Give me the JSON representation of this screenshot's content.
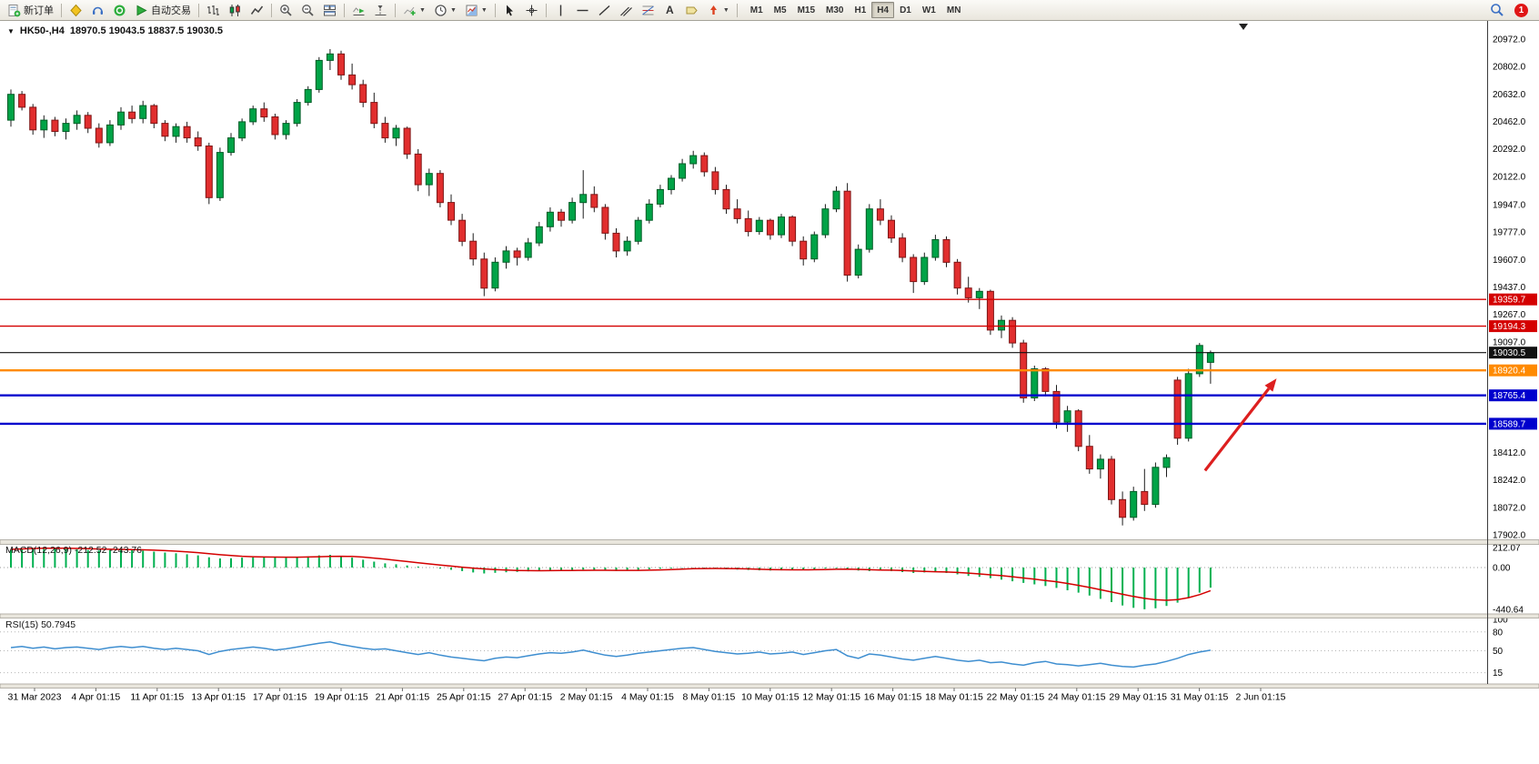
{
  "toolbar": {
    "new_order_label": "新订单",
    "auto_trading_label": "自动交易",
    "timeframes": [
      "M1",
      "M5",
      "M15",
      "M30",
      "H1",
      "H4",
      "D1",
      "W1",
      "MN"
    ],
    "active_timeframe": "H4",
    "notification_count": "1",
    "icons": [
      "new-order",
      "alerts",
      "headset",
      "community",
      "auto-trading",
      "bar-chart",
      "candlestick-chart",
      "line-chart",
      "zoom-in",
      "zoom-out",
      "tile-windows",
      "auto-scroll",
      "chart-shift",
      "indicators",
      "periods",
      "templates",
      "cursor",
      "crosshair",
      "vertical-line",
      "horizontal-line",
      "trendline",
      "equidistant-channel",
      "fibonacci",
      "text",
      "label",
      "arrows",
      "search",
      "notification"
    ]
  },
  "chart_header": {
    "collapse_glyph": "▼",
    "title": "HK50-,H4",
    "ohlc": "18970.5 19043.5 18837.5 19030.5"
  },
  "chart_data": {
    "type": "candlestick",
    "symbol_period": "HK50-,H4",
    "up_color": "#00a347",
    "down_color": "#e12e2e",
    "price_axis_labels": [
      "20972.0",
      "20802.0",
      "20632.0",
      "20462.0",
      "20292.0",
      "20122.0",
      "19947.0",
      "19777.0",
      "19607.0",
      "19437.0",
      "19267.0",
      "19097.0",
      "18412.0",
      "18242.0",
      "18072.0",
      "17902.0"
    ],
    "horizontal_lines": [
      {
        "price": 19359.7,
        "label": "19359.7",
        "color": "#d40000",
        "width": 1.4
      },
      {
        "price": 19194.3,
        "label": "19194.3",
        "color": "#d40000",
        "width": 1.4
      },
      {
        "price": 19030.5,
        "label": "19030.5",
        "color": "#111111",
        "width": 1.1
      },
      {
        "price": 18920.4,
        "label": "18920.4",
        "color": "#ff8a00",
        "width": 2.4
      },
      {
        "price": 18765.4,
        "label": "18765.4",
        "color": "#0000cd",
        "width": 2.4
      },
      {
        "price": 18589.7,
        "label": "18589.7",
        "color": "#0000cd",
        "width": 2.4
      }
    ],
    "annotation_arrow": {
      "from_index": 108.5,
      "from_price": 18300,
      "to_index": 115,
      "to_price": 18870,
      "color": "#dd1f1f"
    },
    "time_axis_labels": [
      "31 Mar 2023",
      "4 Apr 01:15",
      "11 Apr 01:15",
      "13 Apr 01:15",
      "17 Apr 01:15",
      "19 Apr 01:15",
      "21 Apr 01:15",
      "25 Apr 01:15",
      "27 Apr 01:15",
      "2 May 01:15",
      "4 May 01:15",
      "8 May 01:15",
      "10 May 01:15",
      "12 May 01:15",
      "16 May 01:15",
      "18 May 01:15",
      "22 May 01:15",
      "24 May 01:15",
      "29 May 01:15",
      "31 May 01:15",
      "2 Jun 01:15"
    ],
    "candles": [
      [
        20470,
        20660,
        20430,
        20630
      ],
      [
        20630,
        20650,
        20530,
        20550
      ],
      [
        20550,
        20570,
        20380,
        20410
      ],
      [
        20410,
        20500,
        20360,
        20470
      ],
      [
        20470,
        20490,
        20370,
        20400
      ],
      [
        20400,
        20480,
        20350,
        20450
      ],
      [
        20450,
        20530,
        20410,
        20500
      ],
      [
        20500,
        20520,
        20390,
        20420
      ],
      [
        20420,
        20450,
        20300,
        20330
      ],
      [
        20330,
        20470,
        20310,
        20440
      ],
      [
        20440,
        20550,
        20410,
        20520
      ],
      [
        20520,
        20560,
        20450,
        20480
      ],
      [
        20480,
        20590,
        20450,
        20560
      ],
      [
        20560,
        20570,
        20420,
        20450
      ],
      [
        20450,
        20470,
        20340,
        20370
      ],
      [
        20370,
        20450,
        20330,
        20430
      ],
      [
        20430,
        20460,
        20330,
        20360
      ],
      [
        20360,
        20400,
        20280,
        20310
      ],
      [
        20310,
        20330,
        19950,
        19990
      ],
      [
        19990,
        20300,
        19970,
        20270
      ],
      [
        20270,
        20390,
        20250,
        20360
      ],
      [
        20360,
        20480,
        20340,
        20460
      ],
      [
        20460,
        20560,
        20440,
        20540
      ],
      [
        20540,
        20580,
        20460,
        20490
      ],
      [
        20490,
        20510,
        20350,
        20380
      ],
      [
        20380,
        20470,
        20350,
        20450
      ],
      [
        20450,
        20600,
        20430,
        20580
      ],
      [
        20580,
        20680,
        20560,
        20660
      ],
      [
        20660,
        20860,
        20640,
        20840
      ],
      [
        20840,
        20910,
        20780,
        20880
      ],
      [
        20880,
        20900,
        20720,
        20750
      ],
      [
        20750,
        20820,
        20660,
        20690
      ],
      [
        20690,
        20720,
        20550,
        20580
      ],
      [
        20580,
        20640,
        20420,
        20450
      ],
      [
        20450,
        20490,
        20330,
        20360
      ],
      [
        20360,
        20440,
        20310,
        20420
      ],
      [
        20420,
        20430,
        20230,
        20260
      ],
      [
        20260,
        20290,
        20030,
        20070
      ],
      [
        20070,
        20170,
        20000,
        20140
      ],
      [
        20140,
        20160,
        19930,
        19960
      ],
      [
        19960,
        20010,
        19820,
        19850
      ],
      [
        19850,
        19890,
        19690,
        19720
      ],
      [
        19720,
        19770,
        19570,
        19610
      ],
      [
        19610,
        19650,
        19380,
        19430
      ],
      [
        19430,
        19620,
        19410,
        19590
      ],
      [
        19590,
        19690,
        19550,
        19660
      ],
      [
        19660,
        19680,
        19570,
        19620
      ],
      [
        19620,
        19740,
        19600,
        19710
      ],
      [
        19710,
        19840,
        19690,
        19810
      ],
      [
        19810,
        19930,
        19780,
        19900
      ],
      [
        19900,
        19920,
        19810,
        19850
      ],
      [
        19850,
        19990,
        19830,
        19960
      ],
      [
        19960,
        20160,
        19860,
        20010
      ],
      [
        20010,
        20060,
        19900,
        19930
      ],
      [
        19930,
        19950,
        19730,
        19770
      ],
      [
        19770,
        19800,
        19620,
        19660
      ],
      [
        19660,
        19750,
        19630,
        19720
      ],
      [
        19720,
        19870,
        19700,
        19850
      ],
      [
        19850,
        19980,
        19830,
        19950
      ],
      [
        19950,
        20070,
        19930,
        20040
      ],
      [
        20040,
        20130,
        20010,
        20110
      ],
      [
        20110,
        20230,
        20090,
        20200
      ],
      [
        20200,
        20280,
        20170,
        20250
      ],
      [
        20250,
        20270,
        20120,
        20150
      ],
      [
        20150,
        20180,
        20010,
        20040
      ],
      [
        20040,
        20070,
        19890,
        19920
      ],
      [
        19920,
        19980,
        19830,
        19860
      ],
      [
        19860,
        19910,
        19750,
        19780
      ],
      [
        19780,
        19870,
        19760,
        19850
      ],
      [
        19850,
        19860,
        19730,
        19760
      ],
      [
        19760,
        19890,
        19740,
        19870
      ],
      [
        19870,
        19880,
        19690,
        19720
      ],
      [
        19720,
        19750,
        19570,
        19610
      ],
      [
        19610,
        19780,
        19590,
        19760
      ],
      [
        19760,
        19950,
        19740,
        19920
      ],
      [
        19920,
        20060,
        19900,
        20030
      ],
      [
        20030,
        20080,
        19470,
        19510
      ],
      [
        19510,
        19700,
        19490,
        19670
      ],
      [
        19670,
        19950,
        19650,
        19920
      ],
      [
        19920,
        19980,
        19820,
        19850
      ],
      [
        19850,
        19880,
        19710,
        19740
      ],
      [
        19740,
        19770,
        19590,
        19620
      ],
      [
        19620,
        19640,
        19400,
        19470
      ],
      [
        19470,
        19650,
        19450,
        19620
      ],
      [
        19620,
        19760,
        19600,
        19730
      ],
      [
        19730,
        19750,
        19560,
        19590
      ],
      [
        19590,
        19610,
        19390,
        19430
      ],
      [
        19430,
        19500,
        19340,
        19370
      ],
      [
        19370,
        19430,
        19300,
        19410
      ],
      [
        19410,
        19420,
        19140,
        19170
      ],
      [
        19170,
        19260,
        19120,
        19230
      ],
      [
        19230,
        19250,
        19060,
        19090
      ],
      [
        19090,
        19110,
        18720,
        18750
      ],
      [
        18750,
        18950,
        18730,
        18930
      ],
      [
        18930,
        18940,
        18760,
        18790
      ],
      [
        18790,
        18830,
        18560,
        18600
      ],
      [
        18600,
        18700,
        18540,
        18670
      ],
      [
        18670,
        18680,
        18420,
        18450
      ],
      [
        18450,
        18520,
        18280,
        18310
      ],
      [
        18310,
        18400,
        18250,
        18370
      ],
      [
        18370,
        18390,
        18090,
        18120
      ],
      [
        18120,
        18170,
        17960,
        18010
      ],
      [
        18010,
        18200,
        17990,
        18170
      ],
      [
        18170,
        18310,
        18050,
        18090
      ],
      [
        18090,
        18350,
        18070,
        18320
      ],
      [
        18320,
        18400,
        18260,
        18380
      ],
      [
        18860,
        18880,
        18460,
        18500
      ],
      [
        18500,
        18930,
        18480,
        18900
      ],
      [
        18900,
        19090,
        18880,
        19075
      ],
      [
        18970.5,
        19043.5,
        18837.5,
        19030.5
      ]
    ],
    "macd": {
      "label": "MACD(12,26,9) -212.52 -243.76",
      "hist_color": "#00b050",
      "signal_color": "#d40000",
      "axis_labels": [
        "212.07",
        "0.00",
        "-440.64"
      ],
      "histogram": [
        185,
        196,
        204,
        210,
        205,
        198,
        192,
        186,
        180,
        184,
        188,
        182,
        178,
        168,
        158,
        150,
        140,
        128,
        108,
        96,
        98,
        104,
        108,
        112,
        106,
        102,
        108,
        118,
        128,
        134,
        124,
        104,
        82,
        62,
        44,
        34,
        22,
        10,
        0,
        -12,
        -24,
        -38,
        -52,
        -62,
        -56,
        -50,
        -46,
        -40,
        -34,
        -28,
        -26,
        -24,
        -22,
        -26,
        -32,
        -36,
        -32,
        -26,
        -18,
        -12,
        -8,
        -4,
        -2,
        -6,
        -12,
        -18,
        -22,
        -26,
        -30,
        -32,
        -30,
        -26,
        -22,
        -16,
        -10,
        -8,
        -18,
        -32,
        -38,
        -32,
        -38,
        -48,
        -58,
        -52,
        -48,
        -58,
        -72,
        -88,
        -98,
        -112,
        -128,
        -145,
        -162,
        -178,
        -195,
        -215,
        -240,
        -265,
        -295,
        -330,
        -365,
        -400,
        -425,
        -440.6,
        -430,
        -405,
        -370,
        -320,
        -265,
        -212.5
      ],
      "signal": [
        192,
        196,
        200,
        203,
        204,
        203,
        201,
        198,
        195,
        193,
        191,
        189,
        187,
        183,
        178,
        172,
        165,
        157,
        146,
        135,
        126,
        119,
        114,
        111,
        110,
        109,
        109,
        111,
        114,
        118,
        119,
        117,
        110,
        100,
        88,
        76,
        63,
        50,
        38,
        26,
        15,
        4,
        -6,
        -15,
        -22,
        -27,
        -31,
        -33,
        -34,
        -33,
        -32,
        -31,
        -30,
        -29,
        -29,
        -30,
        -30,
        -30,
        -28,
        -25,
        -21,
        -17,
        -13,
        -11,
        -10,
        -11,
        -13,
        -15,
        -18,
        -21,
        -23,
        -24,
        -24,
        -23,
        -21,
        -18,
        -17,
        -19,
        -23,
        -26,
        -28,
        -32,
        -37,
        -41,
        -44,
        -47,
        -52,
        -59,
        -67,
        -77,
        -85,
        -97,
        -110,
        -123,
        -136,
        -150,
        -168,
        -188,
        -210,
        -234,
        -258,
        -282,
        -305,
        -325,
        -340,
        -345,
        -338,
        -318,
        -286,
        -243.8
      ]
    },
    "rsi": {
      "label": "RSI(15) 50.7945",
      "line_color": "#3e8ed0",
      "levels": [
        80,
        50,
        15
      ],
      "axis_labels": [
        "100",
        "80",
        "50",
        "15"
      ],
      "values": [
        55,
        57,
        54,
        56,
        53,
        55,
        56,
        54,
        52,
        55,
        57,
        55,
        57,
        54,
        52,
        54,
        52,
        50,
        44,
        49,
        52,
        54,
        56,
        54,
        51,
        53,
        56,
        59,
        62,
        64,
        60,
        57,
        54,
        52,
        53,
        50,
        47,
        44,
        47,
        43,
        40,
        38,
        36,
        34,
        38,
        40,
        39,
        42,
        45,
        47,
        46,
        48,
        51,
        47,
        43,
        41,
        43,
        46,
        48,
        50,
        52,
        54,
        55,
        52,
        49,
        47,
        45,
        46,
        48,
        45,
        46,
        48,
        44,
        47,
        50,
        52,
        42,
        38,
        45,
        43,
        40,
        37,
        35,
        38,
        41,
        38,
        35,
        33,
        35,
        31,
        32,
        29,
        27,
        31,
        33,
        29,
        28,
        26,
        28,
        30,
        27,
        25,
        24,
        27,
        29,
        33,
        38,
        44,
        48,
        50.8
      ]
    }
  }
}
